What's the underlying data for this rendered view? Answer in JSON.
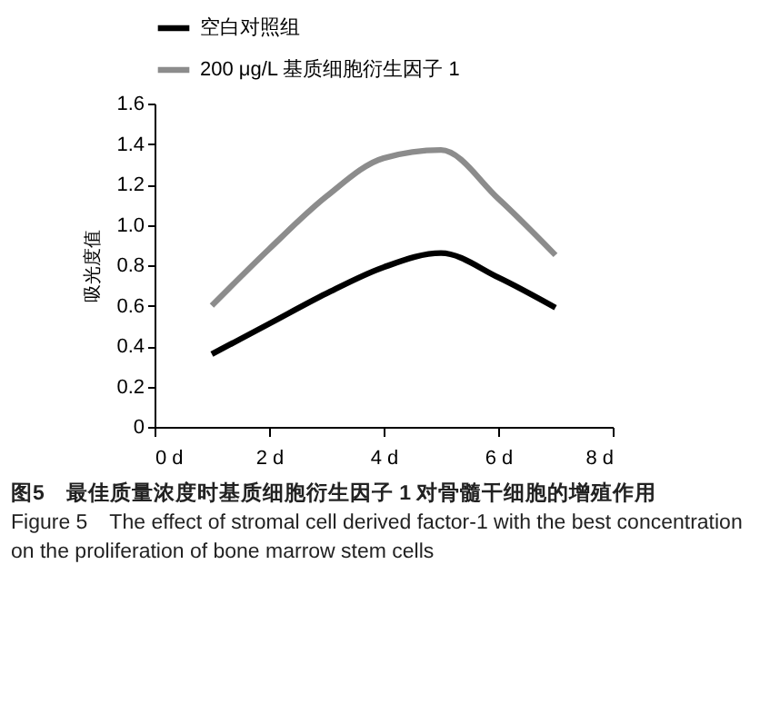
{
  "chart_data": {
    "type": "line",
    "ylabel": "吸光度值",
    "x": [
      1,
      2,
      3,
      4,
      5,
      6,
      7
    ],
    "series": [
      {
        "name": "空白对照组",
        "color": "#000000",
        "values": [
          0.36,
          0.51,
          0.66,
          0.79,
          0.86,
          0.74,
          0.59
        ]
      },
      {
        "name": "200 μg/L 基质细胞衍生因子 1",
        "color": "#8c8c8c",
        "values": [
          0.6,
          0.88,
          1.14,
          1.33,
          1.37,
          1.13,
          0.85
        ]
      }
    ],
    "xlim": [
      0,
      8
    ],
    "xticks": [
      {
        "value": 0,
        "label": "0 d"
      },
      {
        "value": 2,
        "label": "2 d"
      },
      {
        "value": 4,
        "label": "4 d"
      },
      {
        "value": 6,
        "label": "6 d"
      },
      {
        "value": 8,
        "label": "8 d"
      }
    ],
    "ylim": [
      0,
      1.6
    ],
    "yticks": [
      0,
      0.2,
      0.4,
      0.6,
      0.8,
      {
        "value": 1,
        "label": "1.0"
      },
      1.2,
      1.4,
      1.6
    ],
    "grid": false,
    "legend": "top",
    "marker": "none",
    "line_style": "solid",
    "annotations": [
      "图5　最佳质量浓度时基质细胞衍生因子 1 对骨髓干细胞的增殖作用",
      "Figure 5　The effect of stromal cell derived factor-1 with the best concentration on the proliferation of bone marrow stem cells"
    ]
  }
}
